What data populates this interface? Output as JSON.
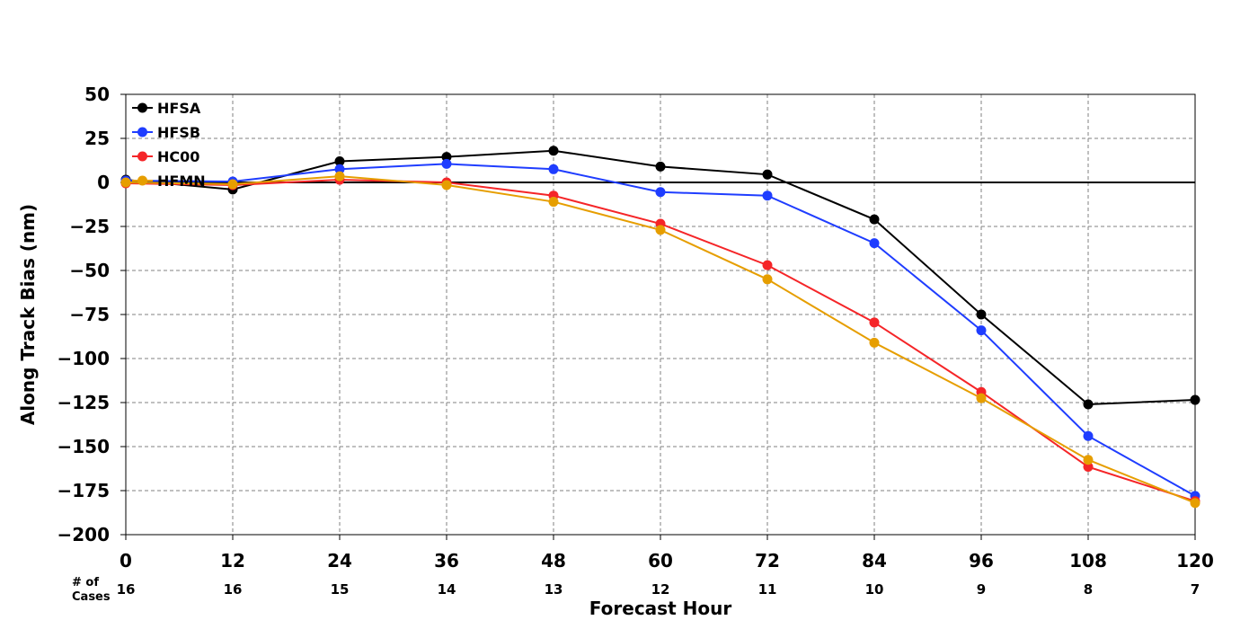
{
  "chart_data": {
    "type": "line",
    "xlabel": "Forecast Hour",
    "ylabel": "Along Track Bias (nm)",
    "x": [
      0,
      12,
      24,
      36,
      48,
      60,
      72,
      84,
      96,
      108,
      120
    ],
    "xticks": [
      "0",
      "12",
      "24",
      "36",
      "48",
      "60",
      "72",
      "84",
      "96",
      "108",
      "120"
    ],
    "xlim": [
      0,
      120
    ],
    "ylim": [
      -200,
      50
    ],
    "yticks": [
      "50",
      "25",
      "0",
      "−25",
      "−50",
      "−75",
      "−100",
      "−125",
      "−150",
      "−175",
      "−200"
    ],
    "ytick_values": [
      50,
      25,
      0,
      -25,
      -50,
      -75,
      -100,
      -125,
      -150,
      -175,
      -200
    ],
    "grid": true,
    "legend_position": "top-left",
    "cases_label": "# of\nCases",
    "cases": [
      "16",
      "16",
      "15",
      "14",
      "13",
      "12",
      "11",
      "10",
      "9",
      "8",
      "7"
    ],
    "series": [
      {
        "name": "HFSA",
        "color": "#000000",
        "values": [
          1.5,
          -4,
          12,
          14.5,
          18,
          9,
          4.5,
          -21,
          -75,
          -126,
          -123.5
        ]
      },
      {
        "name": "HFSB",
        "color": "#1f3dff",
        "values": [
          1,
          0.5,
          7.5,
          10.5,
          7.5,
          -5.5,
          -7.5,
          -34.5,
          -84,
          -144,
          -178
        ]
      },
      {
        "name": "HC00",
        "color": "#f52528",
        "values": [
          -0.5,
          -1.5,
          1.5,
          0,
          -7.5,
          -23.5,
          -47,
          -79.5,
          -119,
          -161.5,
          -181
        ]
      },
      {
        "name": "HFMN",
        "color": "#e69e00",
        "values": [
          0,
          -1,
          3.5,
          -1.5,
          -11,
          -27,
          -55,
          -91,
          -122.5,
          -157.5,
          -182
        ]
      }
    ]
  }
}
